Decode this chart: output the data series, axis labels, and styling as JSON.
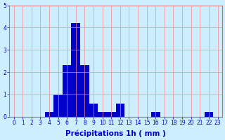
{
  "values": [
    0,
    0,
    0,
    0,
    0.2,
    1.0,
    2.3,
    4.2,
    2.3,
    0.6,
    0.2,
    0.2,
    0.6,
    0,
    0,
    0,
    0.2,
    0,
    0,
    0,
    0,
    0,
    0.2,
    0
  ],
  "bar_color": "#0000cc",
  "background_color": "#cceeff",
  "grid_color": "#ff8888",
  "xlabel": "Précipitations 1h ( mm )",
  "xlabel_color": "#0000cc",
  "tick_color": "#0000cc",
  "axis_color": "#888888",
  "ylim": [
    0,
    5
  ],
  "yticks": [
    0,
    1,
    2,
    3,
    4,
    5
  ],
  "xlim": [
    -0.5,
    23.5
  ],
  "xticks": [
    0,
    1,
    2,
    3,
    4,
    5,
    6,
    7,
    8,
    9,
    10,
    11,
    12,
    13,
    14,
    15,
    16,
    17,
    18,
    19,
    20,
    21,
    22,
    23
  ],
  "tick_fontsize": 5.5,
  "xlabel_fontsize": 7.5
}
